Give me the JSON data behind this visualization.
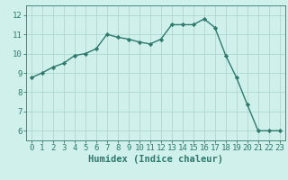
{
  "x": [
    0,
    1,
    2,
    3,
    4,
    5,
    6,
    7,
    8,
    9,
    10,
    11,
    12,
    13,
    14,
    15,
    16,
    17,
    18,
    19,
    20,
    21,
    22,
    23
  ],
  "y": [
    8.75,
    9.0,
    9.3,
    9.5,
    9.9,
    10.0,
    10.25,
    11.0,
    10.85,
    10.75,
    10.6,
    10.5,
    10.75,
    11.5,
    11.5,
    11.5,
    11.8,
    11.35,
    9.9,
    8.75,
    7.35,
    6.0,
    6.0,
    6.0
  ],
  "line_color": "#2d7a6e",
  "marker": "D",
  "marker_size": 2.2,
  "bg_color": "#cff0eb",
  "grid_color": "#aad9d1",
  "xlabel": "Humidex (Indice chaleur)",
  "ylim": [
    5.5,
    12.5
  ],
  "xlim": [
    -0.5,
    23.5
  ],
  "yticks": [
    6,
    7,
    8,
    9,
    10,
    11,
    12
  ],
  "xticks": [
    0,
    1,
    2,
    3,
    4,
    5,
    6,
    7,
    8,
    9,
    10,
    11,
    12,
    13,
    14,
    15,
    16,
    17,
    18,
    19,
    20,
    21,
    22,
    23
  ],
  "tick_color": "#2d7a6e",
  "label_fontsize": 7.5,
  "tick_fontsize": 6.5
}
